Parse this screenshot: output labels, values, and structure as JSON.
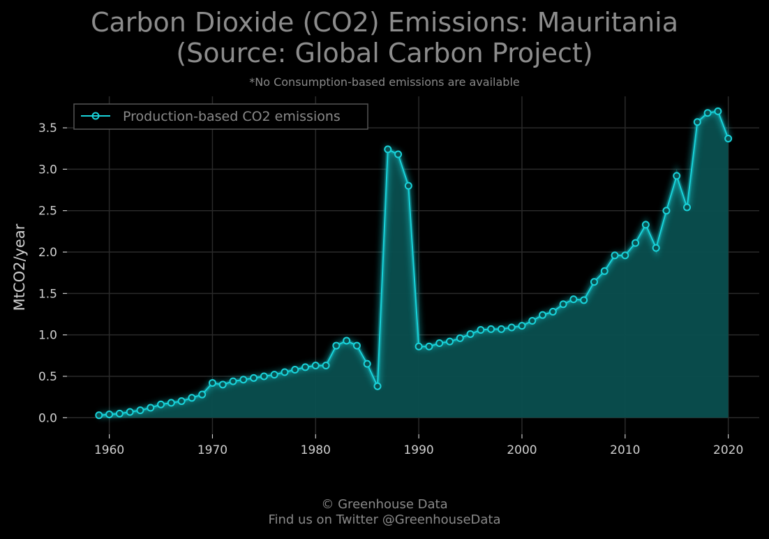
{
  "title_line1": "Carbon Dioxide (CO2) Emissions: Mauritania",
  "title_line2": "(Source: Global Carbon Project)",
  "subtitle": "*No Consumption-based emissions are available",
  "footer_line1": "© Greenhouse Data",
  "footer_line2": "Find us on Twitter @GreenhouseData",
  "colors": {
    "line": "#19d3da",
    "fill": "#0a4f4f",
    "background": "#000000",
    "grid": "#2a2a2a"
  },
  "chart_data": {
    "type": "area",
    "ylabel": "MtCO2/year",
    "xlabel": "",
    "xlim": [
      1955.9,
      2023
    ],
    "ylim": [
      -0.2,
      3.88
    ],
    "xticks": [
      1960,
      1970,
      1980,
      1990,
      2000,
      2010,
      2020
    ],
    "yticks": [
      0.0,
      0.5,
      1.0,
      1.5,
      2.0,
      2.5,
      3.0,
      3.5
    ],
    "ytick_labels": [
      "0.0",
      "0.5",
      "1.0",
      "1.5",
      "2.0",
      "2.5",
      "3.0",
      "3.5"
    ],
    "grid": true,
    "legend_position": "top-left",
    "series": [
      {
        "name": "Production-based CO2 emissions",
        "x": [
          1959,
          1960,
          1961,
          1962,
          1963,
          1964,
          1965,
          1966,
          1967,
          1968,
          1969,
          1970,
          1971,
          1972,
          1973,
          1974,
          1975,
          1976,
          1977,
          1978,
          1979,
          1980,
          1981,
          1982,
          1983,
          1984,
          1985,
          1986,
          1987,
          1988,
          1989,
          1990,
          1991,
          1992,
          1993,
          1994,
          1995,
          1996,
          1997,
          1998,
          1999,
          2000,
          2001,
          2002,
          2003,
          2004,
          2005,
          2006,
          2007,
          2008,
          2009,
          2010,
          2011,
          2012,
          2013,
          2014,
          2015,
          2016,
          2017,
          2018,
          2019,
          2020
        ],
        "y": [
          0.03,
          0.04,
          0.05,
          0.07,
          0.09,
          0.12,
          0.16,
          0.18,
          0.2,
          0.24,
          0.28,
          0.42,
          0.4,
          0.44,
          0.46,
          0.48,
          0.5,
          0.52,
          0.55,
          0.58,
          0.61,
          0.63,
          0.63,
          0.87,
          0.93,
          0.87,
          0.65,
          0.38,
          3.24,
          3.18,
          2.8,
          0.86,
          0.86,
          0.9,
          0.92,
          0.96,
          1.01,
          1.06,
          1.07,
          1.07,
          1.09,
          1.11,
          1.17,
          1.24,
          1.28,
          1.37,
          1.43,
          1.42,
          1.64,
          1.77,
          1.96,
          1.96,
          2.11,
          2.33,
          2.05,
          2.5,
          2.92,
          2.54,
          3.57,
          3.68,
          3.7,
          3.37
        ]
      }
    ]
  }
}
